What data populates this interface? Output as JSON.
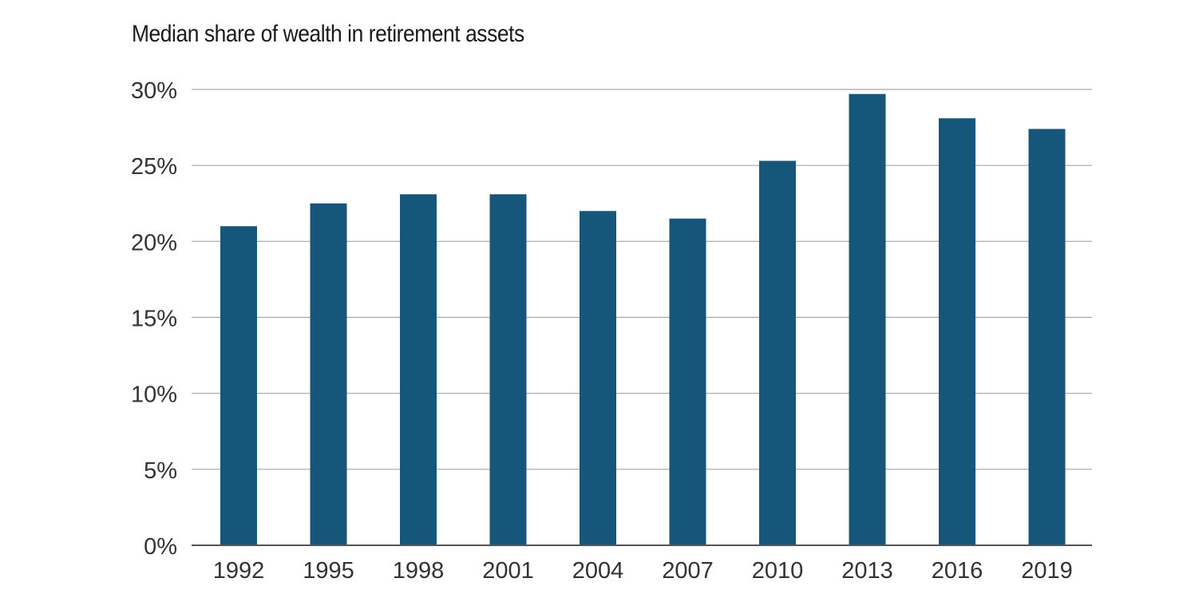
{
  "chart_data": {
    "type": "bar",
    "title": "Median share of wealth in retirement assets",
    "xlabel": "",
    "ylabel": "",
    "categories": [
      "1992",
      "1995",
      "1998",
      "2001",
      "2004",
      "2007",
      "2010",
      "2013",
      "2016",
      "2019"
    ],
    "values": [
      21.0,
      22.5,
      23.1,
      23.1,
      22.0,
      21.5,
      25.3,
      29.7,
      28.1,
      27.4
    ],
    "ylim": [
      0,
      30
    ],
    "yticks": [
      0,
      5,
      10,
      15,
      20,
      25,
      30
    ],
    "ytick_labels": [
      "0%",
      "5%",
      "10%",
      "15%",
      "20%",
      "25%",
      "30%"
    ],
    "grid": true,
    "legend": "none",
    "colors": {
      "bar": "#17567b",
      "grid": "#a6a6a6",
      "axis": "#555555",
      "text": "#333333"
    }
  }
}
